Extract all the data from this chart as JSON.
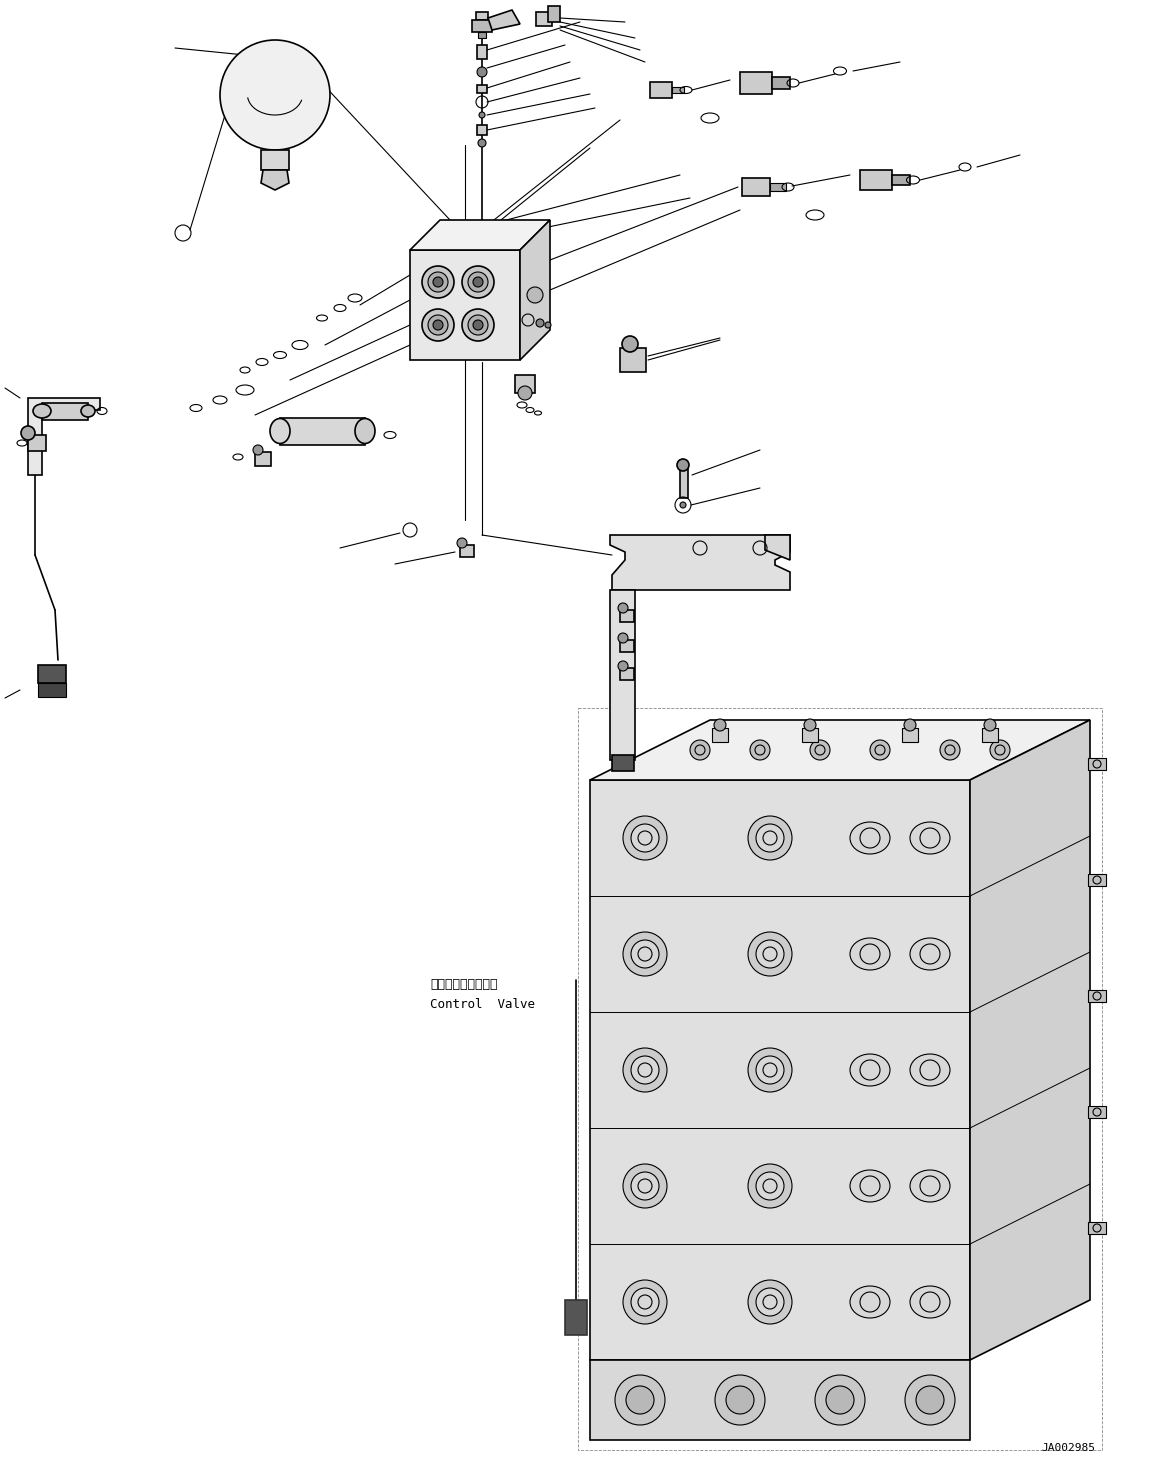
{
  "figsize": [
    11.61,
    14.62
  ],
  "dpi": 100,
  "bg_color": "#ffffff",
  "ref_code": "JA002985",
  "control_valve_jp": "コントロールバルブ",
  "control_valve_en": "Control  Valve",
  "lc": "#000000",
  "lw": 0.8,
  "clw": 1.2
}
